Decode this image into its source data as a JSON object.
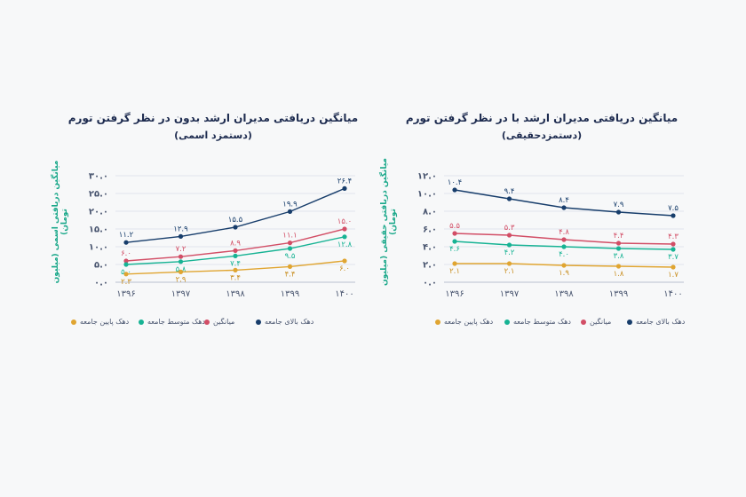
{
  "colors": {
    "top_decile": "#173d6b",
    "average": "#d24e66",
    "middle_decile": "#17b394",
    "bottom_decile": "#e0a531",
    "grid": "#d9dee8"
  },
  "legend_labels": {
    "bottom_decile": "دهک پایین جامعه",
    "middle_decile": "دهک متوسط جامعه",
    "average": "میانگین",
    "top_decile": "دهک بالای جامعه"
  },
  "chart_data": [
    {
      "type": "line",
      "title": "میانگین دریافتی مدیران ارشد بدون در نظر گرفتن تورم",
      "subtitle": "(دستمزد اسمی)",
      "ylabel": "میانگین دریافتی اسمی (میلیون تومان)",
      "x": [
        "۱۳۹۶",
        "۱۳۹۷",
        "۱۳۹۸",
        "۱۳۹۹",
        "۱۴۰۰"
      ],
      "ylim": [
        0,
        30
      ],
      "yticks": [
        0,
        5,
        10,
        15,
        20,
        25,
        30
      ],
      "ytick_labels": [
        "۰.۰",
        "۵.۰",
        "۱۰.۰",
        "۱۵.۰",
        "۲۰.۰",
        "۲۵.۰",
        "۳۰.۰"
      ],
      "grid": true,
      "legend_position": "bottom",
      "series": [
        {
          "key": "top_decile",
          "values": [
            11.2,
            12.9,
            15.5,
            19.9,
            26.4
          ],
          "labels": [
            "۱۱.۲",
            "۱۲.۹",
            "۱۵.۵",
            "۱۹.۹",
            "۲۶.۴"
          ],
          "label_pos": "above"
        },
        {
          "key": "average",
          "values": [
            6.0,
            7.2,
            8.9,
            11.1,
            15.0
          ],
          "labels": [
            "۶.۰",
            "۷.۲",
            "۸.۹",
            "۱۱.۱",
            "۱۵.۰"
          ],
          "label_pos": "above"
        },
        {
          "key": "middle_decile",
          "values": [
            5.0,
            5.8,
            7.4,
            9.5,
            12.8
          ],
          "labels": [
            "۵.۰",
            "۵.۸",
            "۷.۴",
            "۹.۵",
            "۱۲.۸"
          ],
          "label_pos": "below"
        },
        {
          "key": "bottom_decile",
          "values": [
            2.3,
            2.9,
            3.4,
            4.4,
            6.0
          ],
          "labels": [
            "۲.۳",
            "۲.۹",
            "۳.۴",
            "۴.۴",
            "۶.۰"
          ],
          "label_pos": "below"
        }
      ]
    },
    {
      "type": "line",
      "title": "میانگین دریافتی مدیران ارشد با در نظر گرفتن تورم",
      "subtitle": "(دستمزدحقیقی)",
      "ylabel": "میانگین دریافتی حقیقی (میلیون تومان)",
      "x": [
        "۱۳۹۶",
        "۱۳۹۷",
        "۱۳۹۸",
        "۱۳۹۹",
        "۱۴۰۰"
      ],
      "ylim": [
        0,
        12
      ],
      "yticks": [
        0,
        2,
        4,
        6,
        8,
        10,
        12
      ],
      "ytick_labels": [
        "۰.۰",
        "۲.۰",
        "۴.۰",
        "۶.۰",
        "۸.۰",
        "۱۰.۰",
        "۱۲.۰"
      ],
      "grid": true,
      "legend_position": "bottom",
      "series": [
        {
          "key": "top_decile",
          "values": [
            10.4,
            9.4,
            8.4,
            7.9,
            7.5
          ],
          "labels": [
            "۱۰.۴",
            "۹.۴",
            "۸.۴",
            "۷.۹",
            "۷.۵"
          ],
          "label_pos": "above"
        },
        {
          "key": "average",
          "values": [
            5.5,
            5.3,
            4.8,
            4.4,
            4.3
          ],
          "labels": [
            "۵.۵",
            "۵.۳",
            "۴.۸",
            "۴.۴",
            "۴.۳"
          ],
          "label_pos": "above"
        },
        {
          "key": "middle_decile",
          "values": [
            4.6,
            4.2,
            4.0,
            3.8,
            3.7
          ],
          "labels": [
            "۴.۶",
            "۴.۲",
            "۴.۰",
            "۳.۸",
            "۳.۷"
          ],
          "label_pos": "below"
        },
        {
          "key": "bottom_decile",
          "values": [
            2.1,
            2.1,
            1.9,
            1.8,
            1.7
          ],
          "labels": [
            "۲.۱",
            "۲.۱",
            "۱.۹",
            "۱.۸",
            "۱.۷"
          ],
          "label_pos": "below"
        }
      ]
    }
  ]
}
